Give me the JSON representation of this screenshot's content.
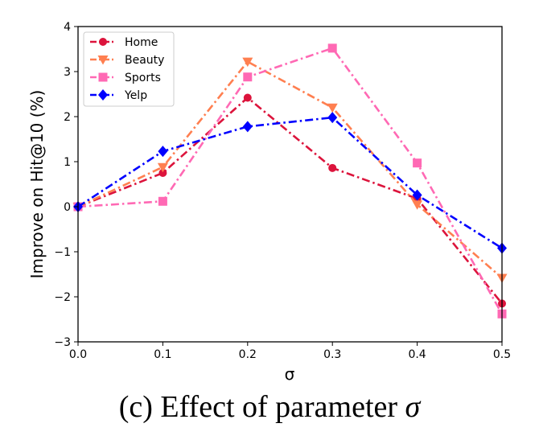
{
  "chart_data": {
    "type": "line",
    "x": [
      0.0,
      0.1,
      0.2,
      0.3,
      0.4,
      0.5
    ],
    "x_tick_labels": [
      "0.0",
      "0.1",
      "0.2",
      "0.3",
      "0.4",
      "0.5"
    ],
    "y_ticks": [
      -3,
      -2,
      -1,
      0,
      1,
      2,
      3,
      4
    ],
    "y_tick_labels": [
      "−3",
      "−2",
      "−1",
      "0",
      "1",
      "2",
      "3",
      "4"
    ],
    "xlim": [
      0.0,
      0.5
    ],
    "ylim": [
      -3,
      4
    ],
    "xlabel": "σ",
    "ylabel": "Improve on Hit@10 (%)",
    "grid": false,
    "legend_position": "top-left",
    "series": [
      {
        "name": "Home",
        "color": "#dc143c",
        "marker": "circle",
        "dash": "dashdot",
        "values": [
          0.0,
          0.75,
          2.42,
          0.86,
          0.18,
          -2.15
        ]
      },
      {
        "name": "Beauty",
        "color": "#ff7f50",
        "marker": "triangle-down",
        "dash": "dashdot",
        "values": [
          0.0,
          0.88,
          3.22,
          2.2,
          0.05,
          -1.58
        ]
      },
      {
        "name": "Sports",
        "color": "#ff69b4",
        "marker": "square",
        "dash": "dashdot",
        "values": [
          0.0,
          0.12,
          2.88,
          3.52,
          0.97,
          -2.38
        ]
      },
      {
        "name": "Yelp",
        "color": "#0000ff",
        "marker": "diamond",
        "dash": "dashdot",
        "values": [
          0.0,
          1.23,
          1.78,
          1.98,
          0.26,
          -0.92
        ]
      }
    ]
  },
  "caption": {
    "prefix": "(c) Effect of parameter ",
    "symbol": "σ"
  }
}
